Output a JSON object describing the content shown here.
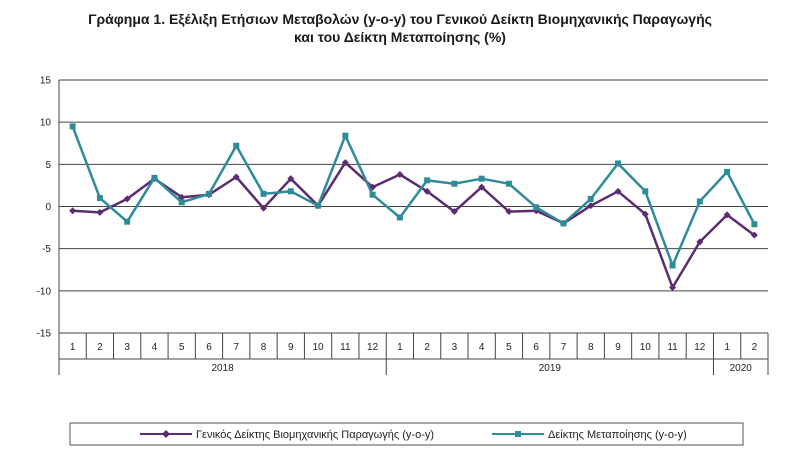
{
  "chart_data": {
    "type": "line",
    "title_line1": "Γράφημα 1. Εξέλιξη Ετήσιων Μεταβολών (y-o-y) του Γενικού Δείκτη Βιομηχανικής Παραγωγής",
    "title_line2": "και του Δείκτη Μεταποίησης (%)",
    "x": [
      "1",
      "2",
      "3",
      "4",
      "5",
      "6",
      "7",
      "8",
      "9",
      "10",
      "11",
      "12",
      "1",
      "2",
      "3",
      "4",
      "5",
      "6",
      "7",
      "8",
      "9",
      "10",
      "11",
      "12",
      "1",
      "2"
    ],
    "years": [
      {
        "label": "2018",
        "start": 0,
        "end": 11
      },
      {
        "label": "2019",
        "start": 12,
        "end": 23
      },
      {
        "label": "2020",
        "start": 24,
        "end": 25
      }
    ],
    "ylim": [
      -15,
      15
    ],
    "yticks": [
      15,
      10,
      5,
      0,
      -5,
      -10,
      -15
    ],
    "grid": true,
    "legend_position": "bottom",
    "series": [
      {
        "name": "Γενικός Δείκτης Βιομηχανικής Παραγωγής (y-o-y)",
        "color": "#5b2c6f",
        "marker": "diamond",
        "values": [
          -0.5,
          -0.7,
          0.9,
          3.3,
          1.1,
          1.4,
          3.5,
          -0.2,
          3.3,
          0.1,
          5.2,
          2.3,
          3.8,
          1.8,
          -0.6,
          2.3,
          -0.6,
          -0.5,
          -2.0,
          0.1,
          1.8,
          -0.9,
          -9.6,
          -4.2,
          -1.0,
          -3.4
        ]
      },
      {
        "name": "Δείκτης Μεταποίησης (y-o-y)",
        "color": "#2e8b99",
        "marker": "square",
        "values": [
          9.5,
          1.0,
          -1.8,
          3.4,
          0.5,
          1.5,
          7.2,
          1.5,
          1.8,
          0.1,
          8.4,
          1.4,
          -1.3,
          3.1,
          2.7,
          3.3,
          2.7,
          -0.1,
          -2.0,
          0.9,
          5.1,
          1.8,
          -7.0,
          0.6,
          4.1,
          -2.1
        ]
      }
    ]
  }
}
